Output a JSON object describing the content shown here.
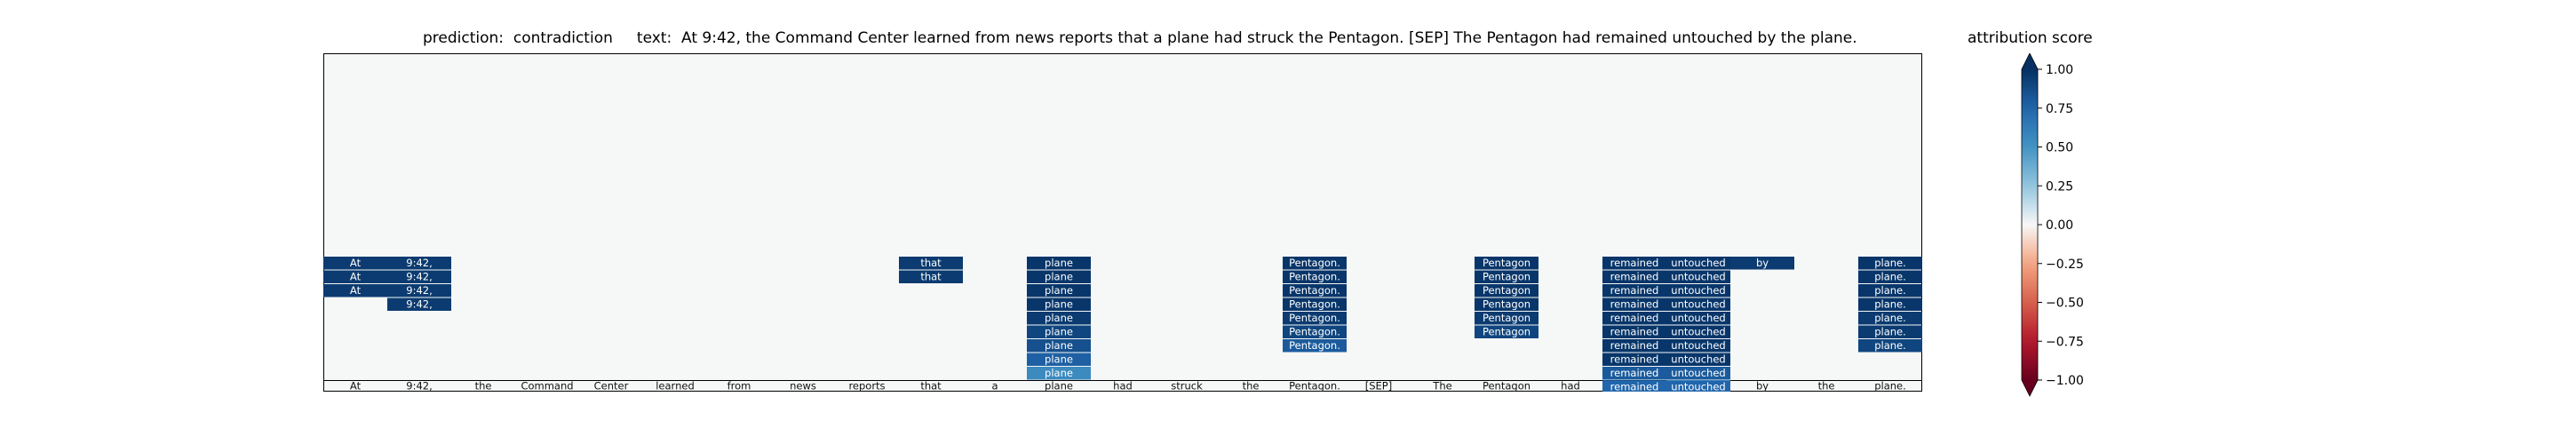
{
  "chart_data": {
    "type": "heatmap",
    "title_prediction_label": "prediction:",
    "title_prediction_value": "contradiction",
    "title_text_label": "text:",
    "title_text_value": "At 9:42, the Command Center learned from news reports that a plane had struck the Pentagon. [SEP] The Pentagon had remained untouched by the plane.",
    "tokens": [
      "At",
      "9:42,",
      "the",
      "Command",
      "Center",
      "learned",
      "from",
      "news",
      "reports",
      "that",
      "a",
      "plane",
      "had",
      "struck",
      "the",
      "Pentagon.",
      "[SEP]",
      "The",
      "Pentagon",
      "had",
      "remained",
      "untouched",
      "by",
      "the",
      "plane."
    ],
    "base_scores": [
      0,
      0,
      0,
      0,
      0,
      0,
      0,
      0,
      0,
      0,
      0,
      0,
      0,
      0,
      0,
      0,
      0,
      0,
      0,
      0,
      0.95,
      0.45,
      0,
      0,
      0
    ],
    "stacks": [
      {
        "token_index": 0,
        "label": "At",
        "scores": [
          0.95,
          0.95,
          0.95
        ]
      },
      {
        "token_index": 1,
        "label": "9:42,",
        "scores": [
          0.95,
          0.95,
          0.95,
          0.95
        ]
      },
      {
        "token_index": 9,
        "label": "that",
        "scores": [
          0.95,
          0.95
        ]
      },
      {
        "token_index": 11,
        "label": "plane",
        "scores": [
          0.97,
          0.97,
          0.97,
          0.97,
          0.95,
          0.9,
          0.85,
          0.78,
          0.55
        ]
      },
      {
        "token_index": 15,
        "label": "Pentagon.",
        "scores": [
          0.97,
          0.97,
          0.97,
          0.97,
          0.95,
          0.9,
          0.8
        ]
      },
      {
        "token_index": 18,
        "label": "Pentagon",
        "scores": [
          0.97,
          0.97,
          0.97,
          0.97,
          0.95,
          0.9
        ]
      },
      {
        "token_index": 20,
        "label": "remained",
        "scores": [
          0.97,
          0.97,
          0.97,
          0.97,
          0.97,
          0.97,
          0.97,
          0.97,
          0.8,
          0.75
        ]
      },
      {
        "token_index": 21,
        "label": "untouched",
        "scores": [
          0.97,
          0.97,
          0.97,
          0.97,
          0.97,
          0.97,
          0.97,
          0.97,
          0.8,
          0.75
        ]
      },
      {
        "token_index": 22,
        "label": "by",
        "scores": [
          0.95
        ]
      },
      {
        "token_index": 24,
        "label": "plane.",
        "scores": [
          0.97,
          0.97,
          0.97,
          0.97,
          0.95,
          0.95,
          0.9
        ]
      }
    ],
    "colorbar": {
      "title": "attribution score",
      "range": [
        -1.0,
        1.0
      ],
      "ticks": [
        1.0,
        0.75,
        0.5,
        0.25,
        0.0,
        -0.25,
        -0.5,
        -0.75,
        -1.0
      ],
      "tick_labels": [
        "1.00",
        "0.75",
        "0.50",
        "0.25",
        "0.00",
        "−0.25",
        "−0.50",
        "−0.75",
        "−1.00"
      ],
      "colormap": "RdBu"
    }
  }
}
